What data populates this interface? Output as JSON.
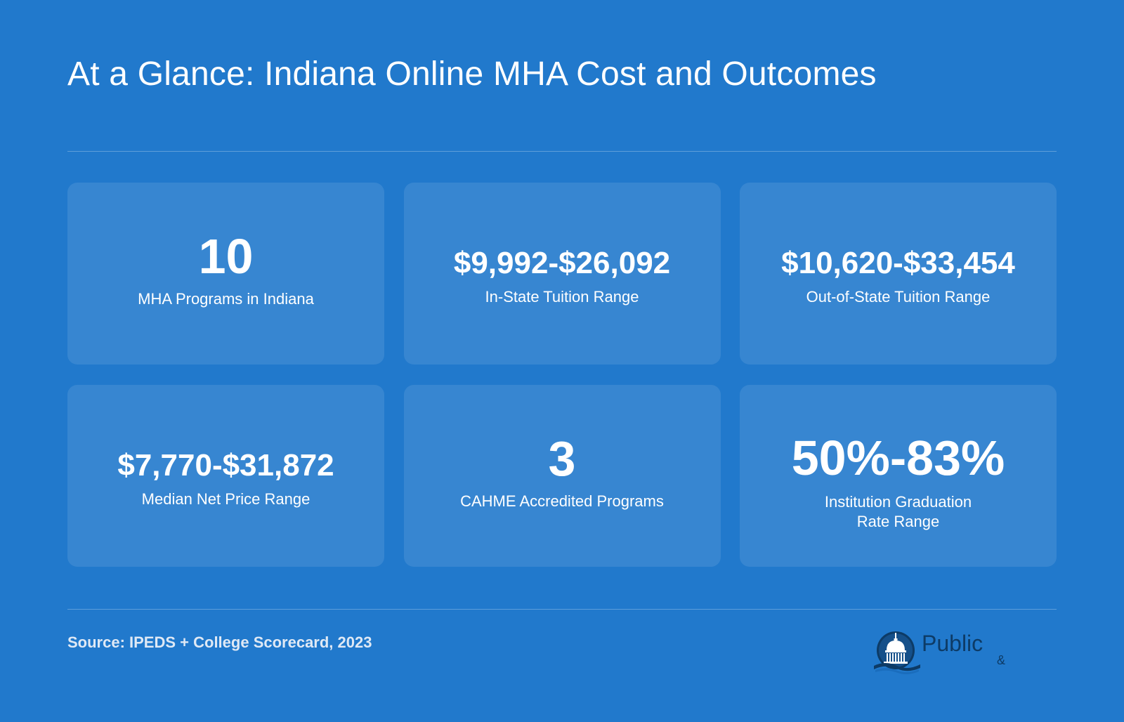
{
  "header": {
    "title": "At a Glance: Indiana Online MHA Cost and Outcomes"
  },
  "stats": [
    {
      "value": "10",
      "label": "MHA Programs in Indiana"
    },
    {
      "value": "$9,992-$26,092",
      "label": "In-State Tuition Range"
    },
    {
      "value": "$10,620-$33,454",
      "label": "Out-of-State Tuition Range"
    },
    {
      "value": "$7,770-$31,872",
      "label": "Median Net Price Range"
    },
    {
      "value": "3",
      "label": "CAHME Accredited Programs"
    },
    {
      "value": "50%-83%",
      "label": "Institution Graduation\nRate Range"
    }
  ],
  "footer": {
    "source": "Source: IPEDS + College Scorecard, 2023"
  },
  "logo": {
    "wordmark": "Public",
    "ampersand": "&",
    "icon": "capitol-dome-icon",
    "colors": {
      "dark": "#0d3b66",
      "accent": "#1a6dbd"
    }
  },
  "colors": {
    "background": "#2179cc",
    "card": "rgba(255,255,255,0.10)",
    "text": "#ffffff"
  }
}
